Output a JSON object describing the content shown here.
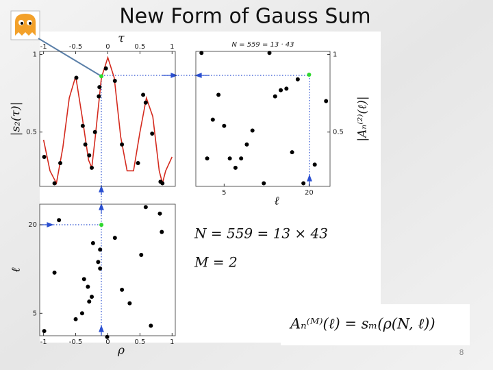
{
  "title": "New Form of Gauss Sum",
  "page_number": "8",
  "annotations": [
    "N = 559 = 13 × 43",
    "M = 2"
  ],
  "formula": "Aₙ⁽ᴹ⁾(ℓ) = sₘ(ρ(N, ℓ))",
  "chart_data": [
    {
      "type": "line",
      "xlabel": "τ",
      "ylabel": "|s₂(τ)|",
      "xaxis_side": "top",
      "yaxis_side": "left",
      "xlim": [
        -1.06,
        1.05
      ],
      "ylim": [
        0.15,
        1.02
      ],
      "xticks": [
        -1,
        -0.5,
        0,
        0.5,
        1
      ],
      "yticks": [
        0.5,
        1
      ],
      "series": [
        {
          "kind": "line",
          "color": "#d42a1e",
          "x": [
            -1.0,
            -0.9,
            -0.8,
            -0.7,
            -0.6,
            -0.5,
            -0.4,
            -0.3,
            -0.25,
            -0.2,
            -0.1,
            0,
            0.1,
            0.2,
            0.3,
            0.4,
            0.5,
            0.6,
            0.7,
            0.8,
            0.85,
            0.9,
            1.0
          ],
          "values": [
            0.45,
            0.25,
            0.17,
            0.4,
            0.72,
            0.86,
            0.6,
            0.32,
            0.27,
            0.45,
            0.85,
            0.98,
            0.85,
            0.47,
            0.25,
            0.25,
            0.5,
            0.72,
            0.6,
            0.25,
            0.17,
            0.25,
            0.34
          ]
        },
        {
          "kind": "scatter",
          "color": "#000000",
          "x": [
            -0.99,
            -0.83,
            -0.74,
            -0.49,
            -0.39,
            -0.35,
            -0.29,
            -0.25,
            -0.2,
            -0.14,
            -0.13,
            -0.03,
            0.11,
            0.22,
            0.47,
            0.55,
            0.59,
            0.69,
            0.82,
            0.85
          ],
          "values": [
            0.34,
            0.17,
            0.3,
            0.85,
            0.54,
            0.42,
            0.35,
            0.27,
            0.5,
            0.73,
            0.79,
            0.91,
            0.83,
            0.42,
            0.3,
            0.74,
            0.69,
            0.49,
            0.18,
            0.17
          ]
        },
        {
          "kind": "scatter",
          "color": "#2ed82e",
          "x": [
            -0.1
          ],
          "values": [
            0.86
          ]
        }
      ]
    },
    {
      "type": "scatter",
      "title": "N = 559 = 13 · 43",
      "xlabel": "ℓ",
      "ylabel": "|Aₙ⁽²⁾(ℓ)|",
      "xaxis_side": "bottom",
      "yaxis_side": "right",
      "xlim": [
        0,
        23.7
      ],
      "ylim": [
        0.15,
        1.02
      ],
      "xticks": [
        5,
        20
      ],
      "yticks": [
        0.5,
        1
      ],
      "series": [
        {
          "kind": "scatter",
          "color": "#000000",
          "x": [
            1,
            2,
            3,
            4,
            5,
            6,
            7,
            8,
            9,
            10,
            12,
            13,
            14,
            15,
            16,
            17,
            18,
            19,
            21,
            23
          ],
          "values": [
            1.01,
            0.33,
            0.58,
            0.74,
            0.54,
            0.33,
            0.27,
            0.33,
            0.42,
            0.51,
            0.17,
            1.01,
            0.73,
            0.77,
            0.78,
            0.37,
            0.84,
            0.17,
            0.29,
            0.7
          ]
        },
        {
          "kind": "scatter",
          "color": "#2ed82e",
          "x": [
            20
          ],
          "values": [
            0.87
          ]
        }
      ]
    },
    {
      "type": "scatter",
      "xlabel": "ρ",
      "ylabel": "ℓ",
      "xaxis_side": "bottom",
      "yaxis_side": "left",
      "xlim": [
        -1.06,
        1.05
      ],
      "ylim": [
        1.2,
        23.5
      ],
      "xticks": [
        -1,
        -0.5,
        0,
        0.5,
        1
      ],
      "yticks": [
        5,
        20
      ],
      "series": [
        {
          "kind": "scatter",
          "color": "#000000",
          "x": [
            -0.99,
            -0.76,
            -0.83,
            -0.5,
            -0.4,
            -0.37,
            -0.31,
            -0.29,
            -0.25,
            -0.23,
            -0.15,
            -0.12,
            -0.12,
            -0.01,
            0.11,
            0.22,
            0.34,
            0.59,
            0.52,
            0.81,
            0.84,
            0.67
          ],
          "values": [
            2,
            20.8,
            11.9,
            4,
            5,
            10.8,
            9.5,
            7,
            7.8,
            16.9,
            13.7,
            15.8,
            12.6,
            1,
            17.8,
            9,
            6.7,
            23,
            14.9,
            21.9,
            18.8,
            2.9
          ]
        },
        {
          "kind": "scatter",
          "color": "#2ed82e",
          "x": [
            -0.1
          ],
          "values": [
            20
          ]
        }
      ]
    }
  ]
}
